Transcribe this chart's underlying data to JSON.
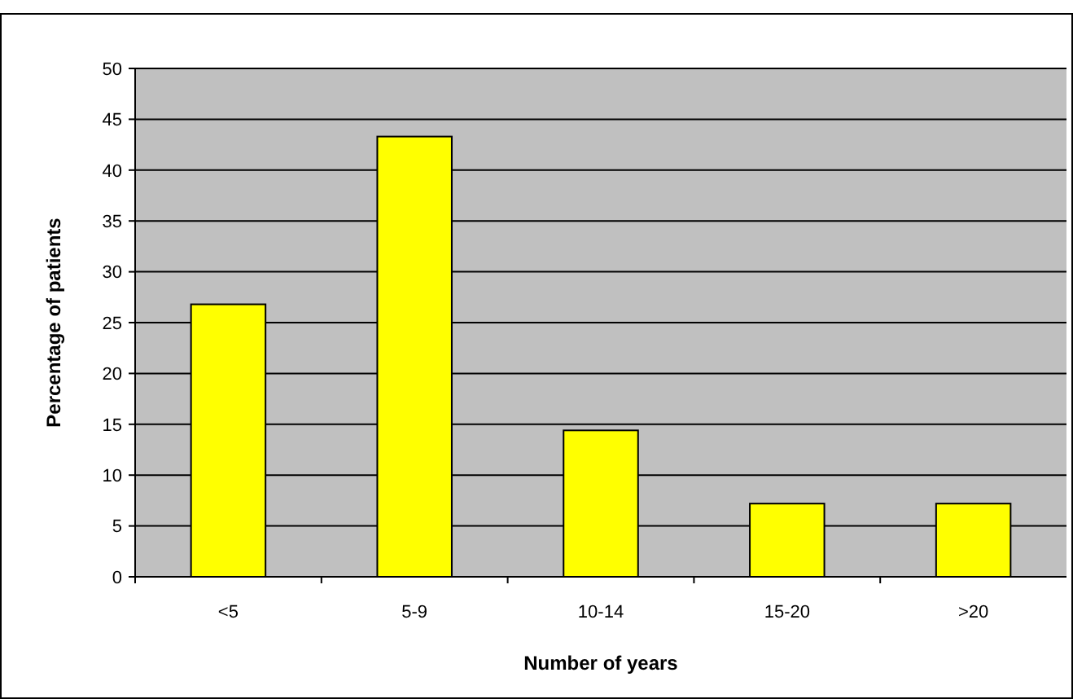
{
  "chart_data": {
    "type": "bar",
    "xlabel": "Number of years",
    "ylabel": "Percentage of patients",
    "categories": [
      "<5",
      "5-9",
      "10-14",
      "15-20",
      ">20"
    ],
    "values": [
      26.8,
      43.3,
      14.4,
      7.2,
      7.2
    ],
    "color": "#ffff00",
    "ylim": [
      0,
      50
    ],
    "yticks": [
      0,
      5,
      10,
      15,
      20,
      25,
      30,
      35,
      40,
      45,
      50
    ],
    "grid": "y"
  }
}
